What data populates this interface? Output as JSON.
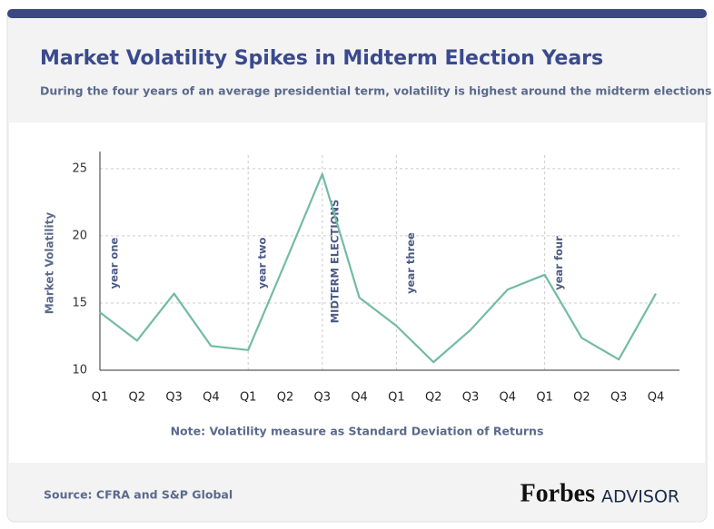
{
  "chart_data": {
    "type": "line",
    "title": "Market Volatility Spikes in Midterm Election Years",
    "subtitle": "During the four years of an average presidential term, volatility is highest around the midterm elections",
    "y_label": "Market Volatility",
    "note": "Note: Volatility measure as Standard Deviation of Returns",
    "source": "Source: CFRA and S&P Global",
    "brand": "Forbes",
    "brand_suffix": "ADVISOR",
    "annotations": [
      "year one",
      "year two",
      "MIDTERM ELECTIONS",
      "year three",
      "year four"
    ],
    "categories": [
      "Q1",
      "Q2",
      "Q3",
      "Q4",
      "Q1",
      "Q2",
      "Q3",
      "Q4",
      "Q1",
      "Q2",
      "Q3",
      "Q4",
      "Q1",
      "Q2",
      "Q3",
      "Q4"
    ],
    "series": [
      {
        "color": "#72bba3",
        "values": [
          14.3,
          12.2,
          15.7,
          11.8,
          11.5,
          18.0,
          24.6,
          15.4,
          13.3,
          10.6,
          13.0,
          16.0,
          17.1,
          12.4,
          10.8,
          15.7
        ]
      }
    ],
    "ylim": [
      10,
      26
    ],
    "yticks": [
      10,
      15,
      20,
      25
    ],
    "grid": true
  }
}
